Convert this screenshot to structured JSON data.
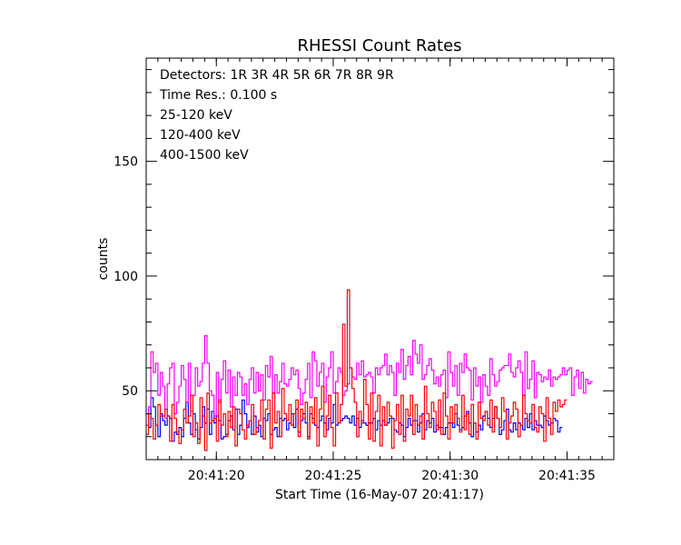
{
  "chart_data": {
    "type": "line",
    "title": "RHESSI Count Rates",
    "xlabel": "Start Time (16-May-07 20:41:17)",
    "ylabel": "counts",
    "x_unit": "seconds after 20:41:17",
    "xlim": [
      0,
      20
    ],
    "ylim": [
      20,
      195
    ],
    "grid": false,
    "x_ticks": [
      {
        "value": 3,
        "label": "20:41:20"
      },
      {
        "value": 8,
        "label": "20:41:25"
      },
      {
        "value": 13,
        "label": "20:41:30"
      },
      {
        "value": 18,
        "label": "20:41:35"
      }
    ],
    "y_ticks": [
      {
        "value": 50,
        "label": "50"
      },
      {
        "value": 100,
        "label": "100"
      },
      {
        "value": 150,
        "label": "150"
      }
    ],
    "annotations": [
      {
        "text": "Detectors:  1R 3R 4R 5R 6R 7R 8R 9R",
        "color": "#000000"
      },
      {
        "text": "Time Res.: 0.100 s",
        "color": "#000000"
      }
    ],
    "series": [
      {
        "name": "25-120 keV",
        "color": "#0000ff",
        "x_start": 0.0,
        "step": 0.1,
        "values": [
          40,
          34,
          47,
          43,
          35,
          30,
          40,
          37,
          35,
          39,
          38,
          28,
          32,
          31,
          34,
          30,
          38,
          45,
          36,
          31,
          40,
          33,
          29,
          34,
          43,
          36,
          42,
          31,
          41,
          36,
          39,
          37,
          29,
          30,
          31,
          37,
          39,
          33,
          42,
          31,
          35,
          46,
          40,
          34,
          37,
          31,
          39,
          32,
          35,
          30,
          38,
          37,
          40,
          31,
          33,
          34,
          30,
          38,
          37,
          38,
          33,
          36,
          40,
          34,
          42,
          32,
          37,
          40,
          36,
          30,
          40,
          38,
          35,
          34,
          37,
          39,
          36,
          33,
          38,
          36,
          44,
          35,
          36,
          37,
          38,
          39,
          38,
          36,
          39,
          35,
          38,
          34,
          37,
          36,
          35,
          36,
          36,
          38,
          33,
          37,
          35,
          37,
          35,
          36,
          38,
          38,
          33,
          32,
          36,
          35,
          30,
          34,
          38,
          35,
          37,
          37,
          32,
          36,
          40,
          33,
          37,
          36,
          38,
          32,
          35,
          34,
          34,
          31,
          34,
          36,
          36,
          34,
          40,
          35,
          33,
          34,
          39,
          41,
          36,
          30,
          36,
          32,
          35,
          33,
          39,
          41,
          38,
          34,
          38,
          43,
          38,
          31,
          33,
          37,
          42,
          33,
          32,
          36,
          33,
          36,
          35,
          33,
          38,
          34,
          40,
          33,
          37,
          35,
          35,
          34,
          39,
          37,
          35,
          36,
          38,
          37,
          32,
          34
        ]
      },
      {
        "name": "120-400 keV",
        "color": "#ff00ff",
        "x_start": 0.0,
        "step": 0.1,
        "values": [
          35,
          43,
          67,
          58,
          62,
          48,
          58,
          52,
          38,
          53,
          60,
          62,
          40,
          45,
          52,
          61,
          55,
          45,
          62,
          41,
          48,
          60,
          52,
          54,
          62,
          74,
          62,
          50,
          48,
          39,
          58,
          45,
          55,
          63,
          49,
          59,
          43,
          56,
          48,
          58,
          56,
          48,
          53,
          44,
          55,
          60,
          49,
          58,
          50,
          57,
          46,
          61,
          56,
          65,
          49,
          57,
          49,
          54,
          62,
          53,
          52,
          55,
          60,
          57,
          59,
          51,
          44,
          49,
          55,
          62,
          47,
          67,
          63,
          52,
          58,
          62,
          45,
          56,
          60,
          67,
          49,
          54,
          60,
          58,
          48,
          50,
          53,
          60,
          56,
          55,
          62,
          57,
          63,
          56,
          57,
          58,
          56,
          49,
          60,
          57,
          60,
          61,
          66,
          57,
          61,
          58,
          48,
          62,
          58,
          68,
          55,
          61,
          65,
          57,
          72,
          66,
          62,
          70,
          55,
          57,
          61,
          64,
          59,
          53,
          56,
          52,
          57,
          59,
          47,
          67,
          58,
          52,
          61,
          48,
          62,
          58,
          66,
          60,
          59,
          46,
          60,
          52,
          56,
          45,
          57,
          52,
          48,
          64,
          57,
          52,
          54,
          59,
          60,
          61,
          61,
          66,
          58,
          56,
          60,
          63,
          58,
          48,
          67,
          51,
          55,
          63,
          47,
          58,
          57,
          54,
          56,
          55,
          59,
          52,
          56,
          55,
          56,
          57,
          60,
          57,
          59,
          60,
          48,
          56,
          59,
          51,
          58,
          49,
          55,
          53,
          54
        ]
      },
      {
        "name": "400-1500 keV",
        "color": "#ff0000",
        "x_start": 0.0,
        "step": 0.1,
        "values": [
          31,
          40,
          38,
          29,
          35,
          44,
          39,
          39,
          42,
          39,
          28,
          44,
          38,
          32,
          27,
          33,
          42,
          36,
          39,
          48,
          30,
          36,
          27,
          47,
          39,
          24,
          49,
          36,
          37,
          38,
          28,
          46,
          35,
          40,
          30,
          41,
          34,
          43,
          26,
          42,
          40,
          33,
          29,
          35,
          37,
          44,
          31,
          34,
          37,
          46,
          29,
          42,
          46,
          25,
          49,
          36,
          41,
          30,
          51,
          40,
          37,
          44,
          35,
          40,
          46,
          30,
          42,
          38,
          45,
          29,
          43,
          36,
          47,
          26,
          42,
          52,
          30,
          39,
          48,
          34,
          26,
          49,
          36,
          44,
          79,
          52,
          94,
          60,
          51,
          45,
          30,
          41,
          36,
          55,
          44,
          29,
          49,
          28,
          41,
          48,
          26,
          43,
          35,
          45,
          39,
          25,
          37,
          44,
          31,
          48,
          28,
          42,
          39,
          48,
          31,
          44,
          35,
          39,
          29,
          52,
          40,
          34,
          45,
          41,
          33,
          46,
          31,
          49,
          39,
          29,
          43,
          36,
          44,
          38,
          32,
          48,
          33,
          40,
          31,
          44,
          36,
          29,
          45,
          38,
          37,
          41,
          35,
          46,
          32,
          43,
          38,
          34,
          47,
          41,
          29,
          36,
          39,
          45,
          42,
          30,
          35,
          48,
          40,
          37,
          36,
          44,
          34,
          32,
          43,
          40,
          28,
          47,
          38,
          31,
          45,
          41,
          46,
          43,
          44,
          46
        ]
      }
    ]
  }
}
